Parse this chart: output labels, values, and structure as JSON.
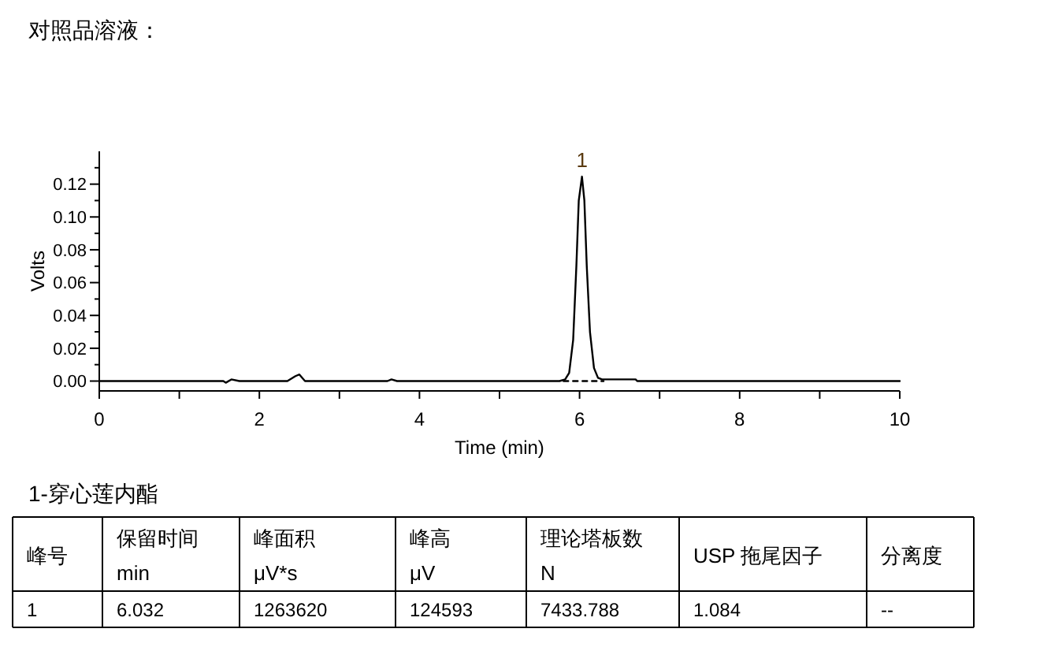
{
  "chart_data": {
    "type": "line",
    "title": "对照品溶液：",
    "xlabel": "Time (min)",
    "ylabel": "Volts",
    "xlim": [
      0,
      10
    ],
    "xticks": [
      0,
      {
        "value": 1,
        "label": null
      },
      2,
      {
        "value": 3,
        "label": null
      },
      4,
      {
        "value": 5,
        "label": null
      },
      6,
      {
        "value": 7,
        "label": null
      },
      8,
      {
        "value": 9,
        "label": null
      },
      10
    ],
    "ylim": [
      -0.006,
      0.14
    ],
    "yticks": [
      {
        "value": 0,
        "label": "0.00"
      },
      {
        "value": 0.01,
        "label": null
      },
      {
        "value": 0.02,
        "label": "0.02"
      },
      {
        "value": 0.03,
        "label": null
      },
      {
        "value": 0.04,
        "label": "0.04"
      },
      {
        "value": 0.05,
        "label": null
      },
      {
        "value": 0.06,
        "label": "0.06"
      },
      {
        "value": 0.07,
        "label": null
      },
      {
        "value": 0.08,
        "label": "0.08"
      },
      {
        "value": 0.09,
        "label": null
      },
      {
        "value": 0.1,
        "label": "0.10"
      },
      {
        "value": 0.11,
        "label": null
      },
      {
        "value": 0.12,
        "label": "0.12"
      },
      {
        "value": 0.13,
        "label": null
      }
    ],
    "grid": false,
    "marker": "none",
    "series": [
      {
        "color": "#000000",
        "line_style": "solid",
        "x": [
          0,
          1.55,
          1.58,
          1.65,
          1.75,
          2.35,
          2.45,
          2.5,
          2.57,
          3.6,
          3.65,
          3.72,
          5.75,
          5.82,
          5.87,
          5.92,
          5.96,
          5.99,
          6.03,
          6.06,
          6.09,
          6.13,
          6.18,
          6.23,
          6.28,
          6.7,
          6.72,
          10
        ],
        "values": [
          0,
          0,
          -0.001,
          0.001,
          0,
          0,
          0.003,
          0.004,
          0,
          0,
          0.001,
          0,
          0,
          0.001,
          0.005,
          0.025,
          0.07,
          0.11,
          0.1246,
          0.11,
          0.07,
          0.03,
          0.008,
          0.002,
          0.001,
          0.001,
          0,
          0
        ]
      },
      {
        "color": "#000000",
        "line_style": "dashed",
        "x": [
          5.8,
          6.3
        ],
        "values": [
          0,
          0
        ]
      }
    ],
    "annotations": [
      {
        "text": "1",
        "x": 6.03,
        "y": 0.1246
      },
      "1-穿心莲内酯",
      "峰号",
      "保留时间\nmin",
      "峰面积\nμV*s",
      "峰高\nμV",
      "理论塔板数\nN",
      "USP 拖尾因子",
      "分离度",
      "1",
      "6.032",
      "1263620",
      "124593",
      "7433.788",
      "1.084",
      "--"
    ]
  }
}
